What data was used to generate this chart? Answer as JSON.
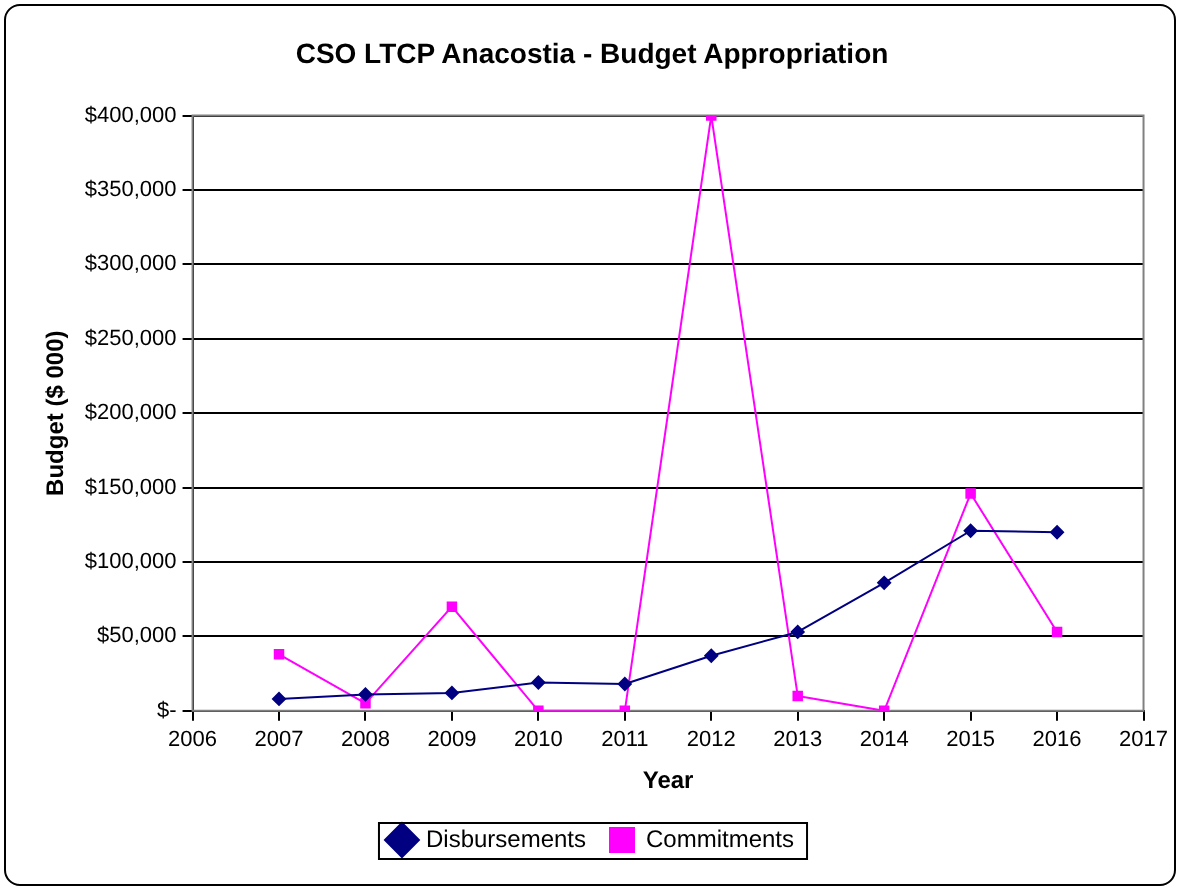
{
  "chart_data": {
    "type": "line",
    "title": "CSO LTCP Anacostia - Budget Appropriation",
    "xlabel": "Year",
    "ylabel": "Budget ($ 000)",
    "x": [
      2007,
      2008,
      2009,
      2010,
      2011,
      2012,
      2013,
      2014,
      2015,
      2016
    ],
    "xlim": [
      2006,
      2017
    ],
    "xticks": [
      2006,
      2007,
      2008,
      2009,
      2010,
      2011,
      2012,
      2013,
      2014,
      2015,
      2016,
      2017
    ],
    "ylim": [
      0,
      400000
    ],
    "yticks": [
      {
        "value": 0,
        "label": "$-"
      },
      {
        "value": 50000,
        "label": "$50,000"
      },
      {
        "value": 100000,
        "label": "$100,000"
      },
      {
        "value": 150000,
        "label": "$150,000"
      },
      {
        "value": 200000,
        "label": "$200,000"
      },
      {
        "value": 250000,
        "label": "$250,000"
      },
      {
        "value": 300000,
        "label": "$300,000"
      },
      {
        "value": 350000,
        "label": "$350,000"
      },
      {
        "value": 400000,
        "label": "$400,000"
      }
    ],
    "grid": "y",
    "legend": "bottom",
    "line_style": "solid",
    "series": [
      {
        "name": "Disbursements",
        "color": "#000080",
        "marker": "diamond",
        "values": [
          8000,
          11000,
          12000,
          19000,
          18000,
          37000,
          53000,
          86000,
          121000,
          120000
        ]
      },
      {
        "name": "Commitments",
        "color": "#ff00ff",
        "marker": "square",
        "values": [
          38000,
          5000,
          70000,
          0,
          0,
          400000,
          10000,
          0,
          146000,
          53000
        ]
      }
    ]
  }
}
